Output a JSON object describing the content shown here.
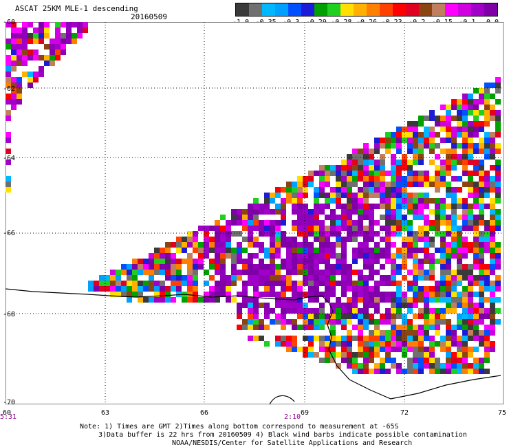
{
  "header": {
    "title": "ASCAT 25KM MLE-1 descending",
    "date": "20160509"
  },
  "colorbar": {
    "colors": [
      "#3a3a3a",
      "#707070",
      "#00b8ff",
      "#00a0ff",
      "#0050ff",
      "#1c1cd8",
      "#00a000",
      "#20d020",
      "#ffe000",
      "#ffb000",
      "#ff8000",
      "#ff4000",
      "#ff0000",
      "#e00020",
      "#8b4513",
      "#c08060",
      "#ff00ff",
      "#d000e0",
      "#a000c8",
      "#8000a8"
    ],
    "labels": [
      "-1.0",
      "-0.35",
      "-0.3",
      "-0.29",
      "-0.28",
      "-0.26",
      "-0.23",
      "-0.2",
      "-0.15",
      "-0.1",
      "0.0"
    ]
  },
  "axes": {
    "lat_labels": [
      "-60",
      "-62",
      "-64",
      "-66",
      "-68",
      "-70"
    ],
    "lon_labels": [
      "60",
      "63",
      "66",
      "69",
      "72",
      "75"
    ]
  },
  "times": [
    "5:31",
    "2:10"
  ],
  "notes": {
    "line1": "Note: 1) Times are GMT 2)Times along bottom correspond to measurement at -65S",
    "line2": "3)Data buffer is 22 hrs from 20160509 4) Black wind barbs indicate possible contamination",
    "line3": "NOAA/NESDIS/Center for Satellite Applications and Research"
  }
}
